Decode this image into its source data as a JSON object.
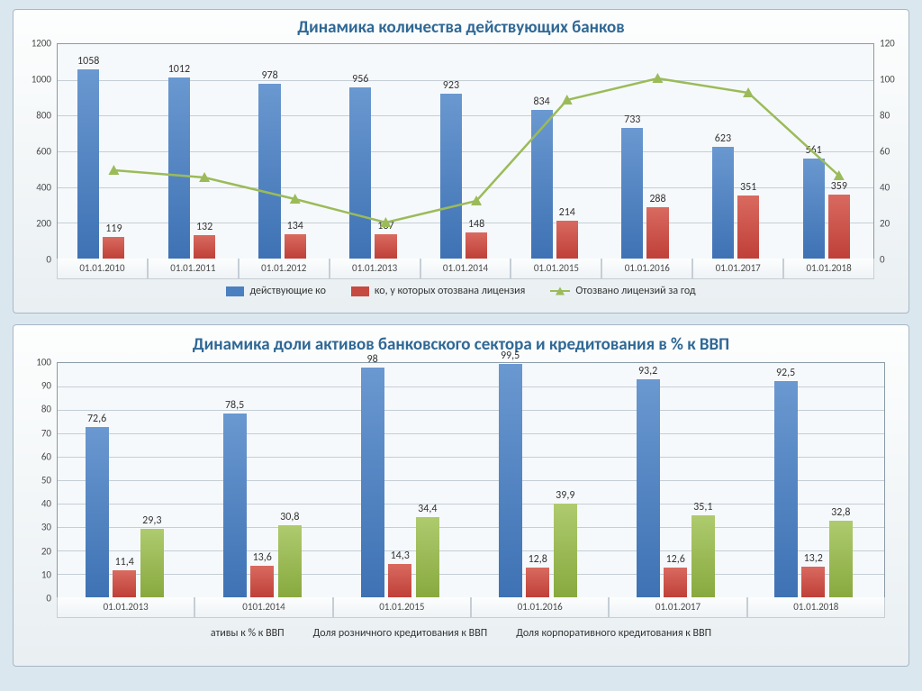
{
  "page_background": "#dbe7ef",
  "chart1": {
    "type": "bar+line",
    "title": "Динамика количества действующих банков",
    "title_color": "#2f6895",
    "title_fontsize": 19,
    "categories": [
      "01.01.2010",
      "01.01.2011",
      "01.01.2012",
      "01.01.2013",
      "01.01.2014",
      "01.01.2015",
      "01.01.2016",
      "01.01.2017",
      "01.01.2018"
    ],
    "y_left": {
      "min": 0,
      "max": 1200,
      "step": 200
    },
    "y_right": {
      "min": 0,
      "max": 120,
      "step": 20
    },
    "series_blue": {
      "label": "действующие ко",
      "color": "#4a7fc0",
      "values": [
        1058,
        1012,
        978,
        956,
        923,
        834,
        733,
        623,
        561
      ]
    },
    "series_red": {
      "label": "ко, у которых отозвана лицензия",
      "color": "#c64a41",
      "values": [
        119,
        132,
        134,
        137,
        148,
        214,
        288,
        351,
        359
      ]
    },
    "series_line": {
      "label": "Отозвано лицензий за год",
      "color": "#9bbb59",
      "values": [
        50,
        46,
        34,
        21,
        33,
        89,
        101,
        93,
        47
      ],
      "marker": "triangle"
    },
    "grid_color": "#c5ced5",
    "background_color": "#f6f9fb",
    "label_fontsize": 12
  },
  "chart2": {
    "type": "bar",
    "title": "Динамика доли активов банковского сектора и кредитования в % к ВВП",
    "title_color": "#2f6895",
    "title_fontsize": 19,
    "categories": [
      "01.01.2013",
      "0101.2014",
      "01.01.2015",
      "01.01.2016",
      "01.01.2017",
      "01.01.2018"
    ],
    "y": {
      "min": 0,
      "max": 100,
      "step": 10
    },
    "series_blue": {
      "label": "ативы к % к ВВП",
      "color": "#4a7fc0",
      "values": [
        72.6,
        78.5,
        98,
        99.5,
        93.2,
        92.5
      ],
      "labels": [
        "72,6",
        "78,5",
        "98",
        "99,5",
        "93,2",
        "92,5"
      ]
    },
    "series_red": {
      "label": "Доля розничного кредитования к ВВП",
      "color": "#c64a41",
      "values": [
        11.4,
        13.6,
        14.3,
        12.8,
        12.6,
        13.2
      ],
      "labels": [
        "11,4",
        "13,6",
        "14,3",
        "12,8",
        "12,6",
        "13,2"
      ]
    },
    "series_green": {
      "label": "Доля корпоративного кредитования к ВВП",
      "color": "#9bbb59",
      "values": [
        29.3,
        30.8,
        34.4,
        39.9,
        35.1,
        32.8
      ],
      "labels": [
        "29,3",
        "30,8",
        "34,4",
        "39,9",
        "35,1",
        "32,8"
      ]
    },
    "grid_color": "#c5ced5",
    "background_color": "#f6f9fb",
    "label_fontsize": 12
  }
}
